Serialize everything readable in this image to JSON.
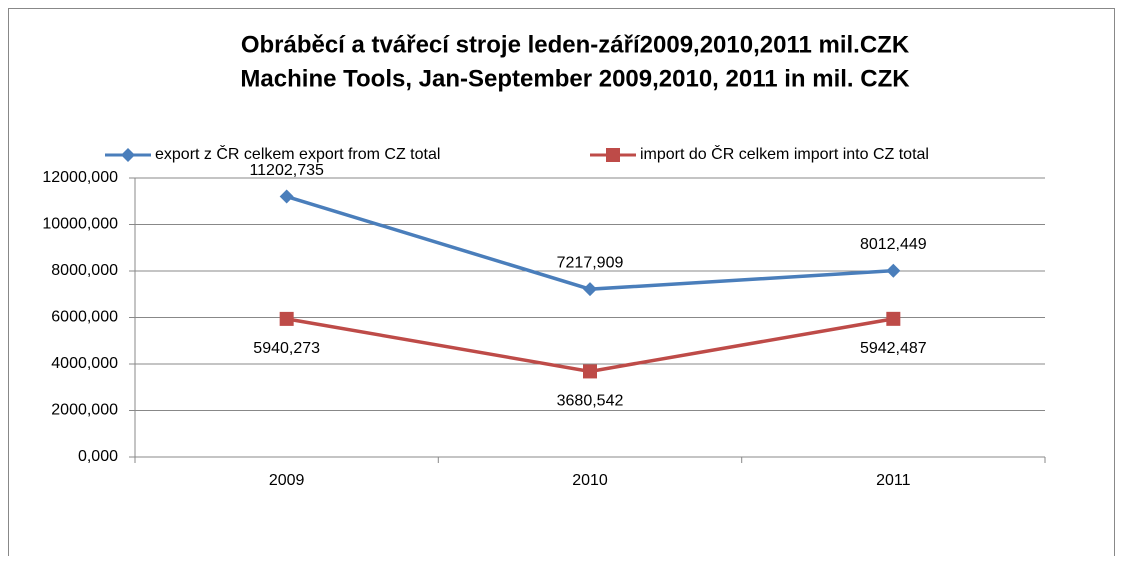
{
  "chart_data": {
    "type": "line",
    "title": "Obráběcí a tvářecí stroje leden-září2009,2010,2011 mil.CZK",
    "subtitle": "Machine Tools, Jan-September 2009,2010, 2011 in mil. CZK",
    "categories": [
      "2009",
      "2010",
      "2011"
    ],
    "series": [
      {
        "name": "export z ČR celkem export from CZ total",
        "color": "#4a7ebb",
        "marker": "diamond",
        "values": [
          11202.735,
          7217.909,
          8012.449
        ],
        "value_labels": [
          "11202,735",
          "7217,909",
          "8012,449"
        ],
        "label_position": "above"
      },
      {
        "name": "import do ČR celkem import into CZ total",
        "color": "#be4b48",
        "marker": "square",
        "values": [
          5940.273,
          3680.542,
          5942.487
        ],
        "value_labels": [
          "5940,273",
          "3680,542",
          "5942,487"
        ],
        "label_position": "below"
      }
    ],
    "ylim": [
      0,
      12000
    ],
    "yticks": [
      {
        "value": 0,
        "label": "0,000"
      },
      {
        "value": 2000,
        "label": "2000,000"
      },
      {
        "value": 4000,
        "label": "4000,000"
      },
      {
        "value": 6000,
        "label": "6000,000"
      },
      {
        "value": 8000,
        "label": "8000,000"
      },
      {
        "value": 10000,
        "label": "10000,000"
      },
      {
        "value": 12000,
        "label": "12000,000"
      }
    ],
    "grid": true,
    "legend": "top"
  }
}
